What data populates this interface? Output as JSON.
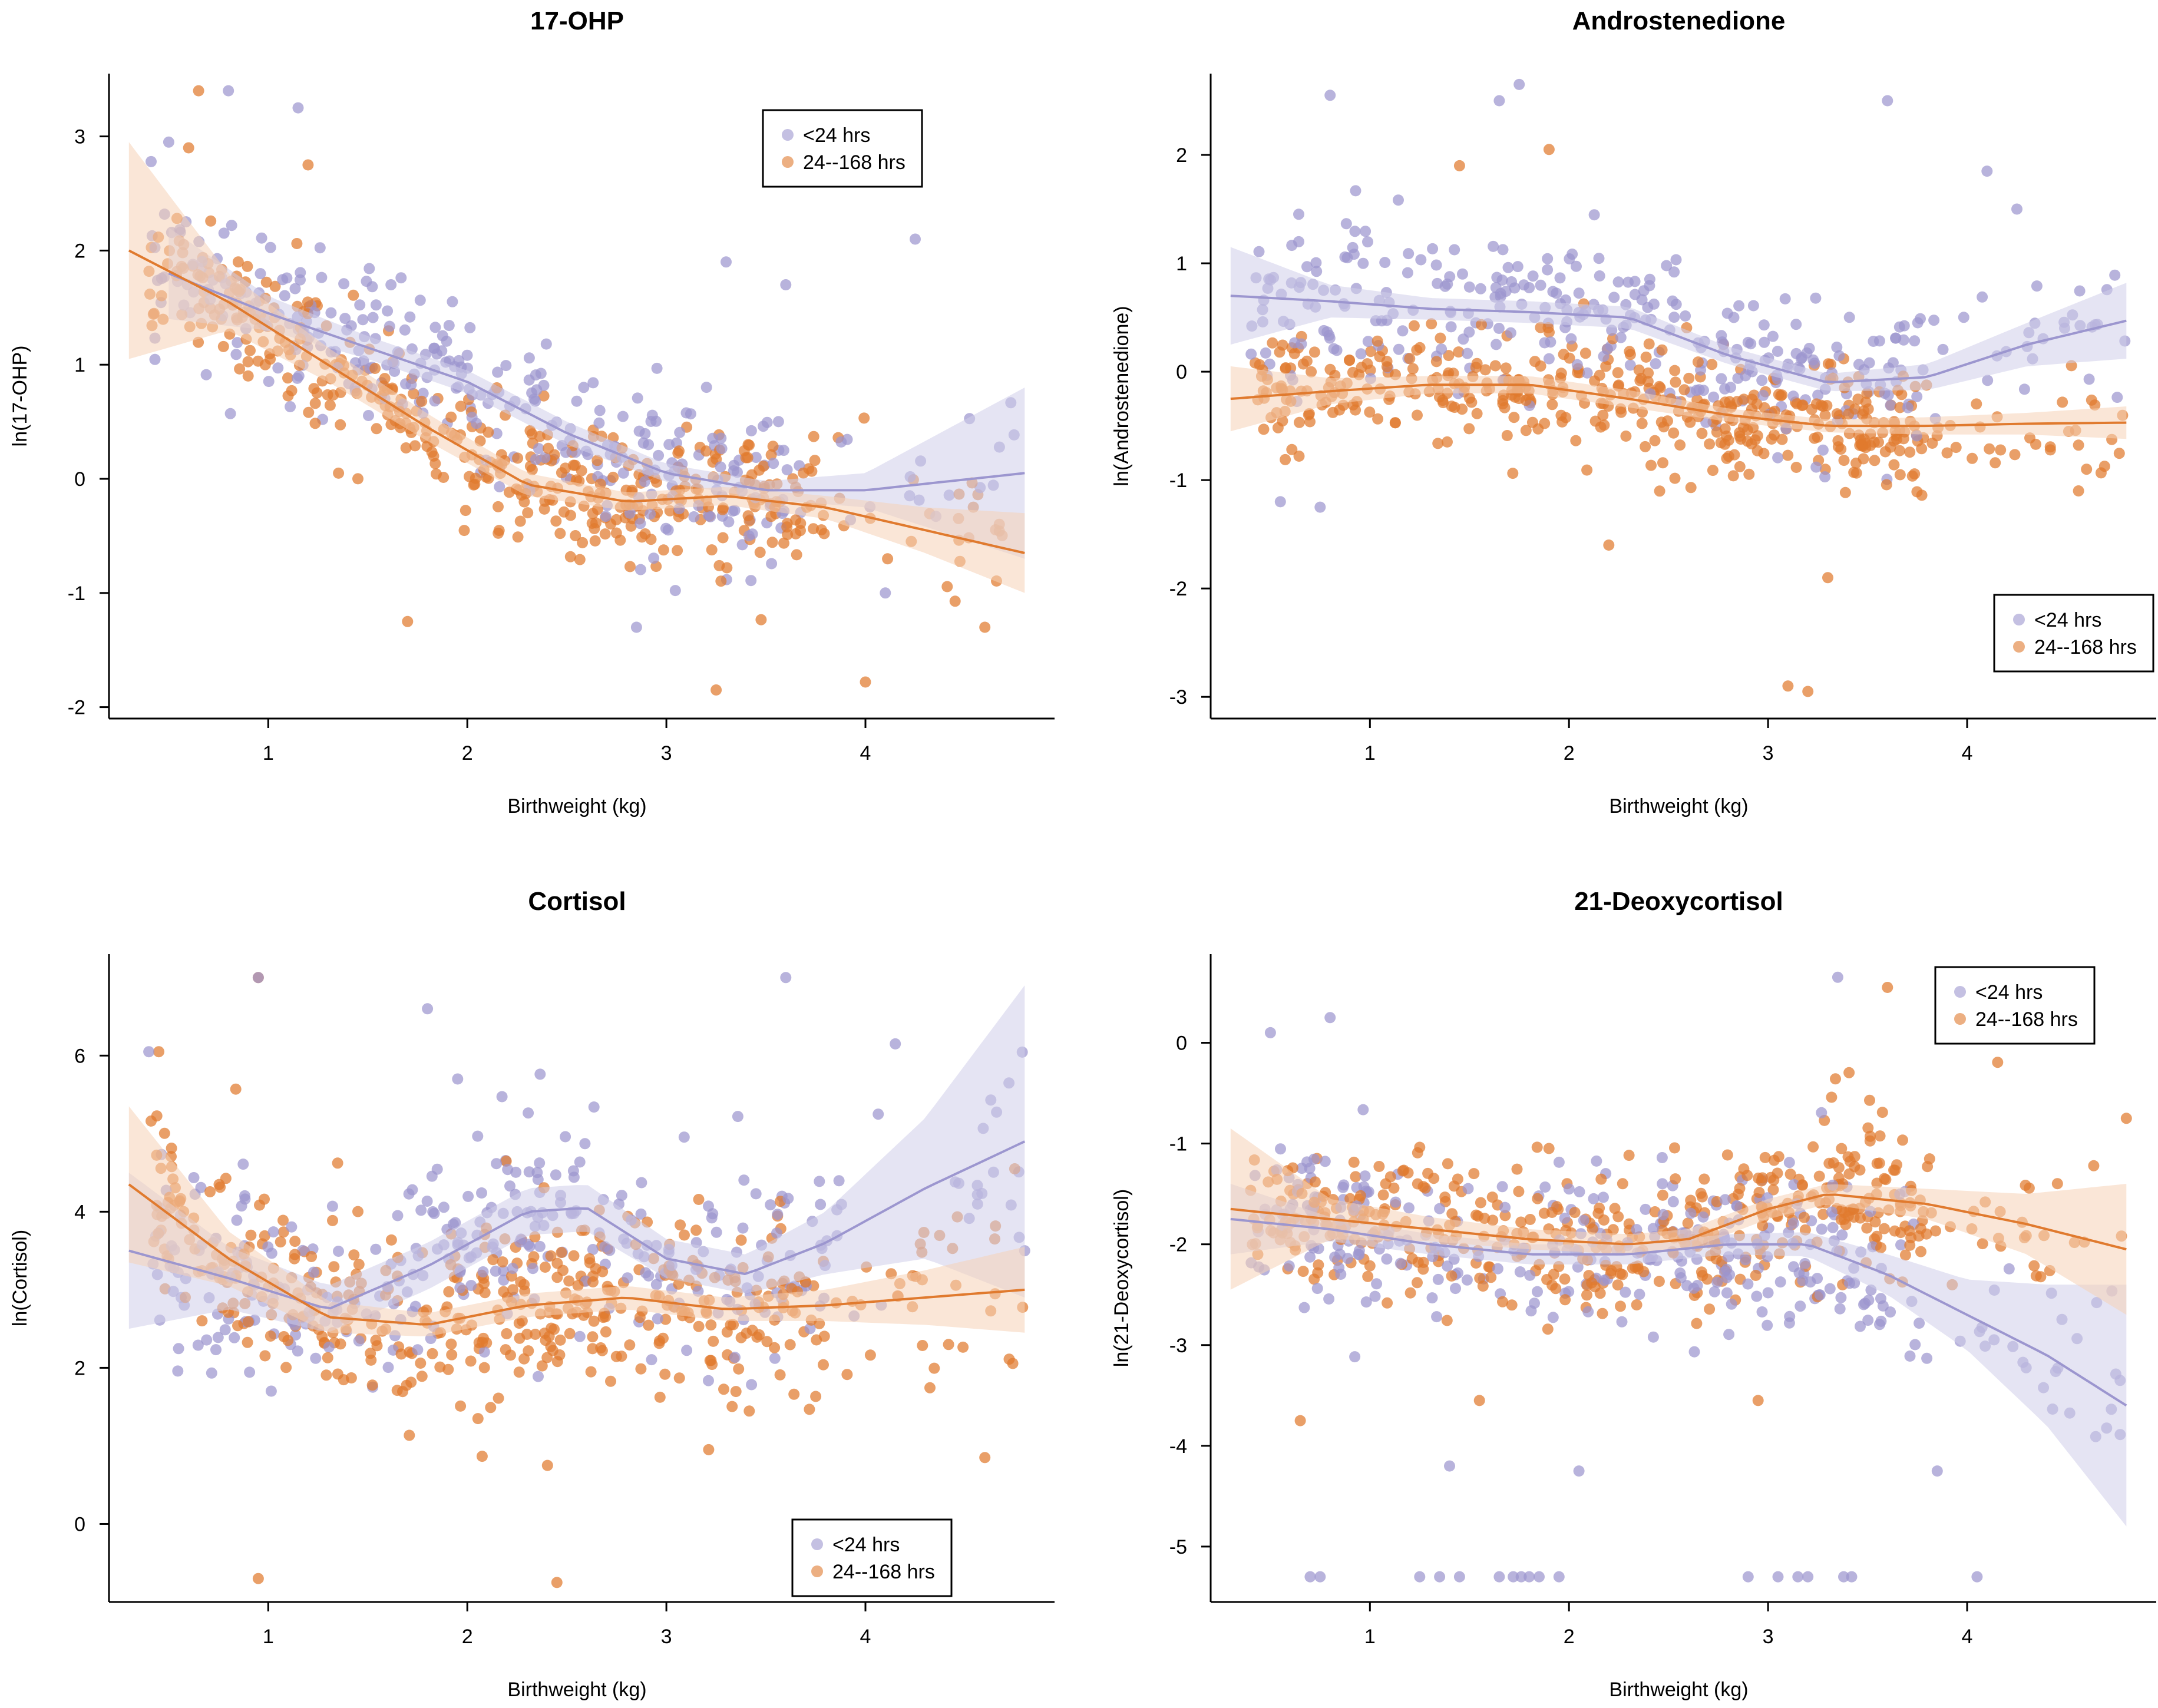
{
  "colors": {
    "lt24": "#9c96cf",
    "h24_168": "#e07a2e",
    "lt24_band": "#cfcdea",
    "h24_168_band": "#f6d2b6"
  },
  "legend_labels": {
    "lt24": "<24 hrs",
    "h24_168": "24--168 hrs"
  },
  "chart_data": [
    {
      "type": "scatter",
      "title": "17-OHP",
      "xlabel": "Birthweight (kg)",
      "ylabel": "ln(17-OHP)",
      "xlim": [
        0.2,
        4.95
      ],
      "ylim": [
        -2.1,
        3.55
      ],
      "xticks": [
        1,
        2,
        3,
        4
      ],
      "yticks": [
        -2,
        -1,
        0,
        1,
        2,
        3
      ],
      "legend": "top-center",
      "series": [
        {
          "name": "<24 hrs",
          "key": "lt24",
          "smooth_x": [
            0.5,
            1,
            1.5,
            2,
            2.5,
            3,
            3.5,
            4,
            4.8
          ],
          "smooth_y": [
            1.8,
            1.45,
            1.15,
            0.85,
            0.4,
            0.05,
            -0.1,
            -0.1,
            0.05
          ],
          "band_halfwidth": [
            0.4,
            0.15,
            0.1,
            0.1,
            0.1,
            0.08,
            0.08,
            0.15,
            0.75
          ],
          "cloud": {
            "n": 320,
            "x": [
              [
                0.4,
                1.0,
                0.15
              ],
              [
                1.0,
                2.5,
                0.45
              ],
              [
                2.5,
                3.6,
                0.3
              ],
              [
                3.6,
                4.8,
                0.05
              ]
            ],
            "spread": 0.65,
            "outliers": [
              [
                0.8,
                3.4
              ],
              [
                0.5,
                2.95
              ],
              [
                1.15,
                3.25
              ],
              [
                3.3,
                1.9
              ],
              [
                3.6,
                1.7
              ],
              [
                4.25,
                2.1
              ],
              [
                4.1,
                -1.0
              ],
              [
                2.85,
                -1.3
              ]
            ]
          }
        },
        {
          "name": "24--168 hrs",
          "key": "h24_168",
          "smooth_x": [
            0.3,
            0.8,
            1.3,
            1.8,
            2.3,
            2.8,
            3.3,
            3.8,
            4.3,
            4.8
          ],
          "smooth_y": [
            2.0,
            1.55,
            1.0,
            0.45,
            -0.05,
            -0.2,
            -0.15,
            -0.25,
            -0.45,
            -0.65
          ],
          "band_halfwidth": [
            0.95,
            0.25,
            0.15,
            0.12,
            0.1,
            0.08,
            0.08,
            0.1,
            0.2,
            0.35
          ],
          "cloud": {
            "n": 460,
            "x": [
              [
                0.4,
                1.0,
                0.18
              ],
              [
                1.0,
                2.6,
                0.42
              ],
              [
                2.6,
                3.8,
                0.34
              ],
              [
                3.8,
                4.7,
                0.06
              ]
            ],
            "spread": 0.55,
            "outliers": [
              [
                0.65,
                3.4
              ],
              [
                0.6,
                2.9
              ],
              [
                1.2,
                2.75
              ],
              [
                3.25,
                -1.85
              ],
              [
                4.0,
                -1.78
              ],
              [
                1.7,
                -1.25
              ],
              [
                4.6,
                -1.3
              ]
            ]
          }
        }
      ]
    },
    {
      "type": "scatter",
      "title": "Androstenedione",
      "xlabel": "Birthweight (kg)",
      "ylabel": "ln(Androstenedione)",
      "xlim": [
        0.2,
        4.95
      ],
      "ylim": [
        -3.2,
        2.75
      ],
      "xticks": [
        1,
        2,
        3,
        4
      ],
      "yticks": [
        -3,
        -2,
        -1,
        0,
        1,
        2
      ],
      "legend": "bottom-right",
      "series": [
        {
          "name": "<24 hrs",
          "key": "lt24",
          "smooth_x": [
            0.3,
            0.8,
            1.3,
            1.8,
            2.3,
            2.8,
            3.3,
            3.8,
            4.3,
            4.8
          ],
          "smooth_y": [
            0.7,
            0.65,
            0.58,
            0.55,
            0.5,
            0.15,
            -0.1,
            -0.05,
            0.25,
            0.47
          ],
          "band_halfwidth": [
            0.45,
            0.15,
            0.1,
            0.1,
            0.1,
            0.08,
            0.08,
            0.12,
            0.2,
            0.35
          ],
          "cloud": {
            "n": 330,
            "x": [
              [
                0.4,
                1.0,
                0.18
              ],
              [
                1.0,
                2.6,
                0.4
              ],
              [
                2.6,
                3.8,
                0.32
              ],
              [
                3.8,
                4.8,
                0.1
              ]
            ],
            "spread": 0.65,
            "outliers": [
              [
                0.8,
                2.55
              ],
              [
                1.75,
                2.65
              ],
              [
                1.65,
                2.5
              ],
              [
                3.6,
                2.5
              ],
              [
                4.1,
                1.85
              ],
              [
                4.25,
                1.5
              ],
              [
                0.55,
                -1.2
              ],
              [
                0.75,
                -1.25
              ]
            ]
          }
        },
        {
          "name": "24--168 hrs",
          "key": "h24_168",
          "smooth_x": [
            0.3,
            0.8,
            1.3,
            1.8,
            2.3,
            2.8,
            3.3,
            3.8,
            4.3,
            4.8
          ],
          "smooth_y": [
            -0.25,
            -0.18,
            -0.12,
            -0.12,
            -0.25,
            -0.4,
            -0.5,
            -0.5,
            -0.48,
            -0.47
          ],
          "band_halfwidth": [
            0.3,
            0.12,
            0.08,
            0.08,
            0.08,
            0.06,
            0.06,
            0.08,
            0.1,
            0.15
          ],
          "cloud": {
            "n": 480,
            "x": [
              [
                0.4,
                1.0,
                0.15
              ],
              [
                1.0,
                2.6,
                0.4
              ],
              [
                2.6,
                3.8,
                0.37
              ],
              [
                3.8,
                4.8,
                0.08
              ]
            ],
            "spread": 0.5,
            "outliers": [
              [
                1.9,
                2.05
              ],
              [
                3.1,
                -2.9
              ],
              [
                3.2,
                -2.95
              ],
              [
                2.2,
                -1.6
              ],
              [
                1.45,
                1.9
              ],
              [
                3.3,
                -1.9
              ],
              [
                4.6,
                -0.9
              ]
            ]
          }
        }
      ]
    },
    {
      "type": "scatter",
      "title": "Cortisol",
      "xlabel": "Birthweight (kg)",
      "ylabel": "ln(Cortisol)",
      "xlim": [
        0.2,
        4.95
      ],
      "ylim": [
        -1.0,
        7.3
      ],
      "xticks": [
        1,
        2,
        3,
        4
      ],
      "yticks": [
        0,
        2,
        4,
        6
      ],
      "legend": "bottom-right",
      "series": [
        {
          "name": "<24 hrs",
          "key": "lt24",
          "smooth_x": [
            0.3,
            0.8,
            1.3,
            1.8,
            2.3,
            2.6,
            3.0,
            3.4,
            3.8,
            4.3,
            4.8
          ],
          "smooth_y": [
            3.5,
            3.15,
            2.75,
            3.3,
            4.0,
            4.05,
            3.4,
            3.2,
            3.6,
            4.3,
            4.9
          ],
          "band_halfwidth": [
            1.0,
            0.4,
            0.3,
            0.3,
            0.3,
            0.3,
            0.25,
            0.25,
            0.4,
            0.9,
            2.0
          ],
          "cloud": {
            "n": 330,
            "x": [
              [
                0.4,
                1.0,
                0.2
              ],
              [
                1.0,
                2.6,
                0.42
              ],
              [
                2.6,
                3.8,
                0.3
              ],
              [
                3.8,
                4.8,
                0.08
              ]
            ],
            "spread": 1.2,
            "outliers": [
              [
                0.95,
                7.0
              ],
              [
                0.4,
                6.05
              ],
              [
                3.6,
                7.0
              ],
              [
                4.15,
                6.15
              ],
              [
                1.8,
                6.6
              ],
              [
                4.8,
                3.5
              ]
            ]
          }
        },
        {
          "name": "24--168 hrs",
          "key": "h24_168",
          "smooth_x": [
            0.3,
            0.8,
            1.3,
            1.8,
            2.3,
            2.8,
            3.3,
            3.8,
            4.3,
            4.8
          ],
          "smooth_y": [
            4.35,
            3.4,
            2.65,
            2.55,
            2.8,
            2.9,
            2.75,
            2.8,
            2.9,
            3.0
          ],
          "band_halfwidth": [
            1.0,
            0.35,
            0.2,
            0.15,
            0.15,
            0.15,
            0.15,
            0.2,
            0.35,
            0.55
          ],
          "cloud": {
            "n": 480,
            "x": [
              [
                0.4,
                1.0,
                0.18
              ],
              [
                1.0,
                2.6,
                0.4
              ],
              [
                2.6,
                3.8,
                0.36
              ],
              [
                3.8,
                4.8,
                0.06
              ]
            ],
            "spread": 1.1,
            "outliers": [
              [
                0.95,
                7.0
              ],
              [
                0.95,
                -0.7
              ],
              [
                2.45,
                -0.75
              ],
              [
                0.45,
                6.05
              ],
              [
                4.6,
                0.85
              ],
              [
                4.75,
                4.55
              ]
            ]
          }
        }
      ]
    },
    {
      "type": "scatter",
      "title": "21-Deoxycortisol",
      "xlabel": "Birthweight (kg)",
      "ylabel": "ln(21-Deoxycortisol)",
      "xlim": [
        0.2,
        4.95
      ],
      "ylim": [
        -5.55,
        0.88
      ],
      "xticks": [
        1,
        2,
        3,
        4
      ],
      "yticks": [
        -5,
        -4,
        -3,
        -2,
        -1,
        0
      ],
      "legend": "top-right",
      "series": [
        {
          "name": "<24 hrs",
          "key": "lt24",
          "smooth_x": [
            0.3,
            0.8,
            1.3,
            1.8,
            2.3,
            2.8,
            3.2,
            3.6,
            4.0,
            4.4,
            4.8
          ],
          "smooth_y": [
            -1.75,
            -1.85,
            -2.0,
            -2.1,
            -2.1,
            -2.0,
            -2.0,
            -2.3,
            -2.7,
            -3.1,
            -3.6
          ],
          "band_halfwidth": [
            0.35,
            0.12,
            0.1,
            0.1,
            0.1,
            0.1,
            0.12,
            0.2,
            0.35,
            0.7,
            1.2
          ],
          "cloud": {
            "n": 330,
            "x": [
              [
                0.4,
                1.0,
                0.2
              ],
              [
                1.0,
                2.6,
                0.4
              ],
              [
                2.6,
                3.8,
                0.32
              ],
              [
                3.8,
                4.8,
                0.08
              ]
            ],
            "spread": 0.75,
            "outliers": [
              [
                0.7,
                -5.3
              ],
              [
                0.75,
                -5.3
              ],
              [
                1.25,
                -5.3
              ],
              [
                1.35,
                -5.3
              ],
              [
                1.45,
                -5.3
              ],
              [
                1.65,
                -5.3
              ],
              [
                1.72,
                -5.3
              ],
              [
                1.76,
                -5.3
              ],
              [
                1.8,
                -5.3
              ],
              [
                1.85,
                -5.3
              ],
              [
                1.95,
                -5.3
              ],
              [
                2.9,
                -5.3
              ],
              [
                3.05,
                -5.3
              ],
              [
                3.15,
                -5.3
              ],
              [
                3.2,
                -5.3
              ],
              [
                3.38,
                -5.3
              ],
              [
                3.42,
                -5.3
              ],
              [
                4.05,
                -5.3
              ],
              [
                0.5,
                0.1
              ],
              [
                0.8,
                0.25
              ],
              [
                3.35,
                0.65
              ],
              [
                1.4,
                -4.2
              ],
              [
                2.05,
                -4.25
              ],
              [
                3.85,
                -4.25
              ]
            ]
          }
        },
        {
          "name": "24--168 hrs",
          "key": "h24_168",
          "smooth_x": [
            0.3,
            0.8,
            1.3,
            1.8,
            2.3,
            2.6,
            3.0,
            3.3,
            3.8,
            4.3,
            4.8
          ],
          "smooth_y": [
            -1.65,
            -1.75,
            -1.85,
            -1.95,
            -2.0,
            -1.95,
            -1.65,
            -1.5,
            -1.6,
            -1.8,
            -2.05
          ],
          "band_halfwidth": [
            0.8,
            0.2,
            0.12,
            0.1,
            0.1,
            0.1,
            0.1,
            0.1,
            0.15,
            0.3,
            0.65
          ],
          "cloud": {
            "n": 490,
            "x": [
              [
                0.4,
                1.0,
                0.16
              ],
              [
                1.0,
                2.6,
                0.4
              ],
              [
                2.6,
                3.8,
                0.38
              ],
              [
                3.8,
                4.8,
                0.06
              ]
            ],
            "spread": 0.65,
            "outliers": [
              [
                3.6,
                0.55
              ],
              [
                0.65,
                -3.75
              ],
              [
                2.95,
                -3.55
              ],
              [
                1.55,
                -3.55
              ],
              [
                4.8,
                -0.75
              ]
            ]
          }
        }
      ]
    }
  ]
}
